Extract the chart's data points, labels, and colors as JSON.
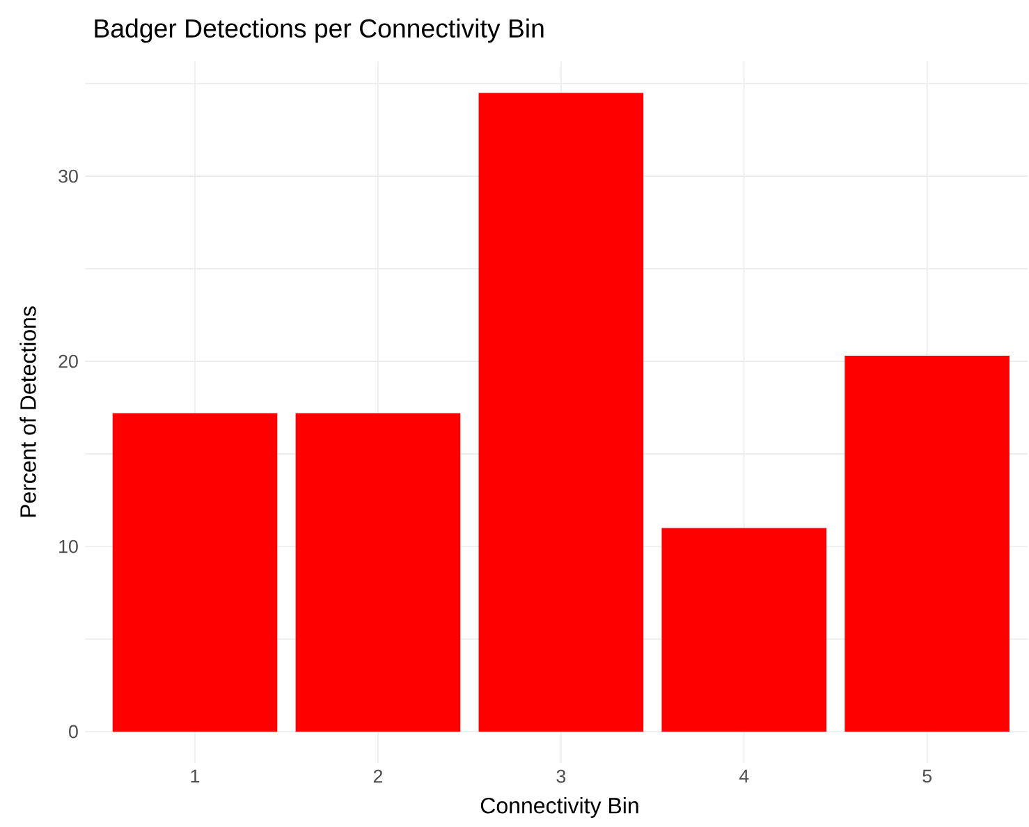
{
  "chart_data": {
    "type": "bar",
    "title": "Badger Detections per Connectivity Bin",
    "xlabel": "Connectivity Bin",
    "ylabel": "Percent of Detections",
    "categories": [
      "1",
      "2",
      "3",
      "4",
      "5"
    ],
    "values": [
      17.2,
      17.2,
      34.5,
      11.0,
      20.3
    ],
    "color": "#ff0000",
    "ylim": [
      -1.7,
      36.2
    ],
    "yticks": [
      0,
      {
        "value": 5,
        "label": null
      },
      10,
      {
        "value": 15,
        "label": null
      },
      20,
      {
        "value": 25,
        "label": null
      },
      30,
      {
        "value": 35,
        "label": null
      }
    ],
    "grid": true
  }
}
